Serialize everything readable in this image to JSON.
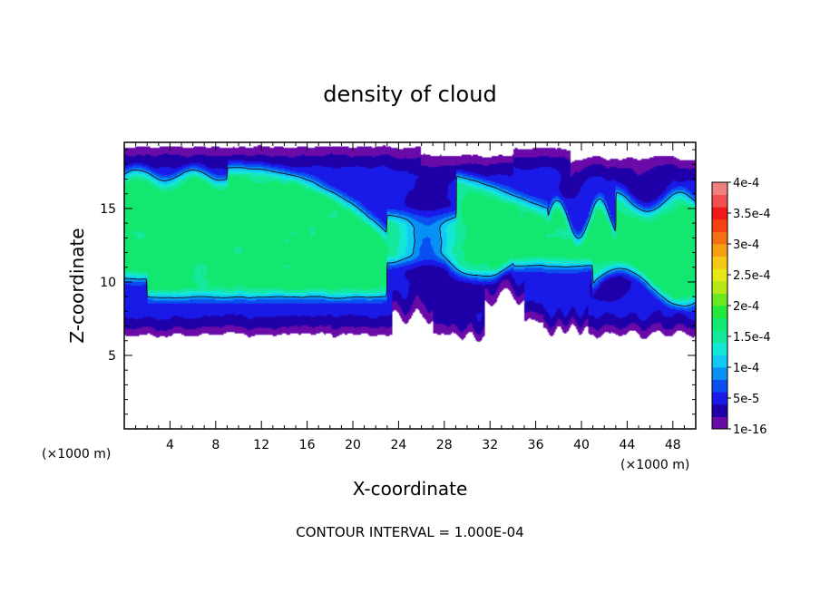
{
  "chart_data": {
    "type": "heatmap",
    "title": "density of cloud",
    "xlabel": "X-coordinate",
    "ylabel": "Z-coordinate",
    "x_unit_note_left": "(×1000 m)",
    "x_unit_note_right": "(×1000 m)",
    "footer": "CONTOUR INTERVAL = 1.000E-04",
    "xlim": [
      0,
      50
    ],
    "ylim": [
      0,
      19.5
    ],
    "x_ticks": [
      4,
      8,
      12,
      16,
      20,
      24,
      28,
      32,
      36,
      40,
      44,
      48
    ],
    "y_ticks": [
      5,
      10,
      15
    ],
    "colorbar": {
      "labels": [
        "1e-16",
        "5e-5",
        "1e-4",
        "1.5e-4",
        "2e-4",
        "2.5e-4",
        "3e-4",
        "3.5e-4",
        "4e-4"
      ],
      "levels": [
        0,
        2e-05,
        4e-05,
        6e-05,
        8e-05,
        0.0001,
        0.00012,
        0.00014,
        0.00016,
        0.00018,
        0.0002,
        0.00022,
        0.00024,
        0.00026,
        0.00028,
        0.0003,
        0.00032,
        0.00034,
        0.00036,
        0.00038,
        0.0004
      ],
      "colors": [
        "#6a0aa8",
        "#1f00a8",
        "#1a1ae8",
        "#0a50f0",
        "#0890f5",
        "#12c8f5",
        "#14e6d8",
        "#14e89a",
        "#12e870",
        "#22e83a",
        "#6ce820",
        "#b8e818",
        "#e8e818",
        "#f5c818",
        "#f5a012",
        "#f57012",
        "#f54010",
        "#f01818",
        "#f05050",
        "#f08080"
      ]
    },
    "cloud_layer": {
      "base_z_range": [
        6.3,
        8.8
      ],
      "top_z_range": [
        17.5,
        19.5
      ],
      "core_value": 0.00016,
      "max_value": 0.00016
    },
    "contour_value": 0.0001
  }
}
